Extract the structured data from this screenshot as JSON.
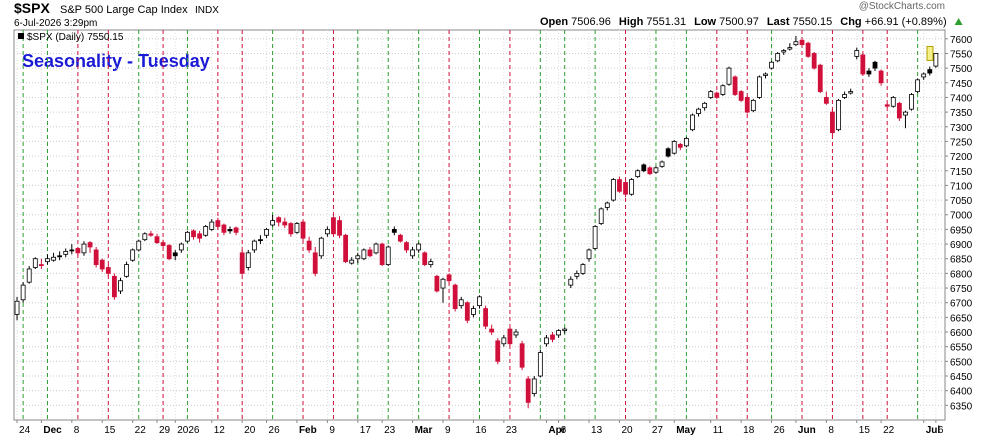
{
  "chart_data": {
    "type": "candlestick",
    "symbol": "$SPX",
    "description": "S&P 500 Large Cap Index",
    "exchange": "INDX",
    "date": "6-Jul-2026 3:29pm",
    "quote": [
      {
        "label": "Open",
        "value": "7506.96"
      },
      {
        "label": "High",
        "value": "7551.31"
      },
      {
        "label": "Low",
        "value": "7500.97"
      },
      {
        "label": "Last",
        "value": "7550.15"
      },
      {
        "label": "Chg",
        "value": "+66.91 (+0.89%)"
      }
    ],
    "watermark": "@StockCharts.com",
    "title": "Seasonality - Tuesday",
    "series": [
      {
        "name": "$SPX (Daily)",
        "up_color": "#000000",
        "down_color": "#d0103a",
        "ohlc": [
          [
            6660,
            6720,
            6640,
            6705
          ],
          [
            6710,
            6770,
            6700,
            6760
          ],
          [
            6770,
            6825,
            6765,
            6815
          ],
          [
            6820,
            6855,
            6815,
            6850
          ],
          [
            6830,
            6850,
            6815,
            6830
          ],
          [
            6840,
            6865,
            6830,
            6850
          ],
          [
            6845,
            6870,
            6840,
            6855
          ],
          [
            6860,
            6875,
            6845,
            6860
          ],
          [
            6865,
            6885,
            6855,
            6875
          ],
          [
            6880,
            6900,
            6865,
            6880
          ],
          [
            6885,
            6890,
            6860,
            6870
          ],
          [
            6870,
            6910,
            6860,
            6900
          ],
          [
            6905,
            6910,
            6870,
            6890
          ],
          [
            6880,
            6890,
            6820,
            6830
          ],
          [
            6845,
            6850,
            6805,
            6815
          ],
          [
            6820,
            6830,
            6790,
            6800
          ],
          [
            6790,
            6800,
            6710,
            6720
          ],
          [
            6740,
            6785,
            6730,
            6775
          ],
          [
            6790,
            6840,
            6785,
            6830
          ],
          [
            6845,
            6885,
            6840,
            6880
          ],
          [
            6880,
            6915,
            6875,
            6910
          ],
          [
            6915,
            6940,
            6910,
            6935
          ],
          [
            6935,
            6945,
            6925,
            6930
          ],
          [
            6925,
            6935,
            6900,
            6905
          ],
          [
            6905,
            6915,
            6890,
            6895
          ],
          [
            6895,
            6900,
            6845,
            6850
          ],
          [
            6870,
            6880,
            6845,
            6860
          ],
          [
            6880,
            6905,
            6870,
            6900
          ],
          [
            6910,
            6945,
            6905,
            6940
          ],
          [
            6945,
            6950,
            6915,
            6925
          ],
          [
            6935,
            6945,
            6905,
            6920
          ],
          [
            6930,
            6965,
            6925,
            6960
          ],
          [
            6950,
            6985,
            6945,
            6975
          ],
          [
            6980,
            6990,
            6950,
            6960
          ],
          [
            6965,
            6970,
            6930,
            6940
          ],
          [
            6950,
            6960,
            6935,
            6945
          ],
          [
            6955,
            6960,
            6930,
            6940
          ],
          [
            6870,
            6880,
            6795,
            6800
          ],
          [
            6820,
            6880,
            6810,
            6870
          ],
          [
            6880,
            6915,
            6870,
            6910
          ],
          [
            6915,
            6930,
            6900,
            6915
          ],
          [
            6930,
            6955,
            6920,
            6950
          ],
          [
            6965,
            7000,
            6960,
            6980
          ],
          [
            6990,
            6995,
            6960,
            6975
          ],
          [
            6975,
            6990,
            6955,
            6965
          ],
          [
            6970,
            6975,
            6925,
            6935
          ],
          [
            6940,
            6975,
            6935,
            6970
          ],
          [
            6975,
            6980,
            6910,
            6920
          ],
          [
            6910,
            6925,
            6870,
            6880
          ],
          [
            6870,
            6890,
            6790,
            6800
          ],
          [
            6860,
            6925,
            6850,
            6920
          ],
          [
            6935,
            6960,
            6925,
            6950
          ],
          [
            6990,
            6995,
            6930,
            6935
          ],
          [
            6980,
            6995,
            6920,
            6930
          ],
          [
            6930,
            6935,
            6835,
            6840
          ],
          [
            6835,
            6855,
            6830,
            6845
          ],
          [
            6850,
            6870,
            6835,
            6860
          ],
          [
            6850,
            6885,
            6845,
            6880
          ],
          [
            6880,
            6890,
            6855,
            6860
          ],
          [
            6870,
            6905,
            6865,
            6900
          ],
          [
            6900,
            6905,
            6825,
            6830
          ],
          [
            6830,
            6895,
            6825,
            6890
          ],
          [
            6950,
            6960,
            6930,
            6940
          ],
          [
            6930,
            6935,
            6905,
            6910
          ],
          [
            6905,
            6910,
            6870,
            6880
          ],
          [
            6860,
            6890,
            6850,
            6880
          ],
          [
            6880,
            6905,
            6870,
            6900
          ],
          [
            6870,
            6875,
            6825,
            6830
          ],
          [
            6830,
            6850,
            6820,
            6840
          ],
          [
            6790,
            6795,
            6735,
            6740
          ],
          [
            6750,
            6785,
            6700,
            6780
          ],
          [
            6795,
            6800,
            6765,
            6775
          ],
          [
            6760,
            6765,
            6670,
            6680
          ],
          [
            6690,
            6720,
            6680,
            6710
          ],
          [
            6700,
            6705,
            6630,
            6640
          ],
          [
            6660,
            6690,
            6650,
            6680
          ],
          [
            6690,
            6725,
            6680,
            6720
          ],
          [
            6680,
            6690,
            6610,
            6620
          ],
          [
            6610,
            6625,
            6590,
            6600
          ],
          [
            6570,
            6580,
            6490,
            6500
          ],
          [
            6560,
            6590,
            6550,
            6580
          ],
          [
            6610,
            6615,
            6550,
            6560
          ],
          [
            6590,
            6610,
            6580,
            6600
          ],
          [
            6560,
            6570,
            6470,
            6480
          ],
          [
            6440,
            6450,
            6340,
            6360
          ],
          [
            6390,
            6450,
            6380,
            6440
          ],
          [
            6450,
            6540,
            6445,
            6530
          ],
          [
            6560,
            6590,
            6550,
            6580
          ],
          [
            6590,
            6600,
            6565,
            6575
          ],
          [
            6590,
            6610,
            6580,
            6605
          ],
          [
            6605,
            6615,
            6595,
            6610
          ],
          [
            6760,
            6790,
            6750,
            6780
          ],
          [
            6790,
            6810,
            6780,
            6800
          ],
          [
            6800,
            6835,
            6795,
            6830
          ],
          [
            6850,
            6885,
            6840,
            6880
          ],
          [
            6885,
            6965,
            6880,
            6960
          ],
          [
            6970,
            7025,
            6965,
            7020
          ],
          [
            7025,
            7045,
            7015,
            7040
          ],
          [
            7050,
            7125,
            7045,
            7120
          ],
          [
            7120,
            7130,
            7075,
            7080
          ],
          [
            7110,
            7120,
            7060,
            7070
          ],
          [
            7070,
            7125,
            7065,
            7120
          ],
          [
            7130,
            7155,
            7125,
            7150
          ],
          [
            7170,
            7175,
            7145,
            7150
          ],
          [
            7160,
            7165,
            7135,
            7140
          ],
          [
            7145,
            7165,
            7140,
            7160
          ],
          [
            7165,
            7185,
            7160,
            7180
          ],
          [
            7225,
            7230,
            7195,
            7200
          ],
          [
            7210,
            7255,
            7205,
            7250
          ],
          [
            7240,
            7245,
            7220,
            7230
          ],
          [
            7235,
            7265,
            7230,
            7260
          ],
          [
            7290,
            7345,
            7285,
            7340
          ],
          [
            7345,
            7365,
            7335,
            7360
          ],
          [
            7365,
            7385,
            7355,
            7380
          ],
          [
            7400,
            7425,
            7395,
            7420
          ],
          [
            7415,
            7420,
            7395,
            7400
          ],
          [
            7410,
            7445,
            7405,
            7440
          ],
          [
            7445,
            7505,
            7440,
            7500
          ],
          [
            7470,
            7475,
            7405,
            7410
          ],
          [
            7420,
            7425,
            7385,
            7390
          ],
          [
            7400,
            7405,
            7345,
            7350
          ],
          [
            7355,
            7395,
            7350,
            7390
          ],
          [
            7400,
            7475,
            7395,
            7470
          ],
          [
            7475,
            7485,
            7465,
            7480
          ],
          [
            7500,
            7525,
            7495,
            7520
          ],
          [
            7525,
            7555,
            7520,
            7550
          ],
          [
            7555,
            7565,
            7545,
            7560
          ],
          [
            7565,
            7585,
            7560,
            7570
          ],
          [
            7580,
            7610,
            7575,
            7590
          ],
          [
            7595,
            7600,
            7575,
            7580
          ],
          [
            7585,
            7590,
            7535,
            7540
          ],
          [
            7550,
            7555,
            7495,
            7500
          ],
          [
            7510,
            7515,
            7415,
            7420
          ],
          [
            7400,
            7420,
            7375,
            7380
          ],
          [
            7350,
            7360,
            7270,
            7280
          ],
          [
            7290,
            7395,
            7285,
            7390
          ],
          [
            7400,
            7420,
            7395,
            7410
          ],
          [
            7415,
            7430,
            7410,
            7420
          ],
          [
            7540,
            7570,
            7530,
            7560
          ],
          [
            7545,
            7550,
            7475,
            7480
          ],
          [
            7490,
            7500,
            7470,
            7480
          ],
          [
            7520,
            7525,
            7490,
            7500
          ],
          [
            7490,
            7495,
            7440,
            7450
          ],
          [
            7375,
            7380,
            7365,
            7370
          ],
          [
            7370,
            7405,
            7365,
            7400
          ],
          [
            7380,
            7385,
            7320,
            7330
          ],
          [
            7340,
            7355,
            7295,
            7350
          ],
          [
            7360,
            7415,
            7355,
            7410
          ],
          [
            7420,
            7465,
            7415,
            7460
          ],
          [
            7470,
            7485,
            7460,
            7480
          ],
          [
            7495,
            7505,
            7475,
            7483.24
          ],
          [
            7506.96,
            7551.31,
            7500.97,
            7550.15
          ]
        ]
      }
    ],
    "seasonality_days": [
      1,
      5,
      10,
      15,
      20,
      24,
      28,
      33,
      37,
      42,
      47,
      52,
      56,
      61,
      66,
      71,
      76,
      81,
      86,
      90,
      95,
      100,
      105,
      110,
      115,
      120,
      124,
      129,
      134,
      139,
      143,
      148
    ],
    "seasonality_up_color": "#2e9e2e",
    "seasonality_down_color": "#d0103a",
    "xlim": [
      -0.5,
      152.5
    ],
    "xticks": [
      {
        "value": 0,
        "label": "24"
      },
      {
        "value": 4,
        "label": "Dec"
      },
      {
        "value": 9,
        "label": "8"
      },
      {
        "value": 14,
        "label": "15"
      },
      {
        "value": 19,
        "label": "22"
      },
      {
        "value": 23,
        "label": "29"
      },
      {
        "value": 26,
        "label": "2026"
      },
      {
        "value": 32,
        "label": "12"
      },
      {
        "value": 37,
        "label": "20"
      },
      {
        "value": 41,
        "label": "26"
      },
      {
        "value": 46,
        "label": "Feb"
      },
      {
        "value": 51,
        "label": "9"
      },
      {
        "value": 56,
        "label": "17"
      },
      {
        "value": 60,
        "label": "23"
      },
      {
        "value": 65,
        "label": "Mar"
      },
      {
        "value": 70,
        "label": "9"
      },
      {
        "value": 75,
        "label": "16"
      },
      {
        "value": 80,
        "label": "23"
      },
      {
        "value": 87,
        "label": "Apr"
      },
      {
        "value": 89,
        "label": "6"
      },
      {
        "value": 94,
        "label": "13"
      },
      {
        "value": 99,
        "label": "20"
      },
      {
        "value": 104,
        "label": "27"
      },
      {
        "value": 108,
        "label": "May"
      },
      {
        "value": 114,
        "label": "11"
      },
      {
        "value": 119,
        "label": "18"
      },
      {
        "value": 124,
        "label": "26"
      },
      {
        "value": 128,
        "label": "Jun"
      },
      {
        "value": 133,
        "label": "8"
      },
      {
        "value": 138,
        "label": "15"
      },
      {
        "value": 142,
        "label": "22"
      },
      {
        "value": 149,
        "label": "Jul"
      },
      {
        "value": 151,
        "label": "6"
      }
    ],
    "ylim": [
      6300,
      7630
    ],
    "yticks": [
      6350,
      6400,
      6450,
      6500,
      6550,
      6600,
      6650,
      6700,
      6750,
      6800,
      6850,
      6900,
      6950,
      7000,
      7050,
      7100,
      7150,
      7200,
      7250,
      7300,
      7350,
      7400,
      7450,
      7500,
      7550,
      7600
    ],
    "grid": true
  }
}
